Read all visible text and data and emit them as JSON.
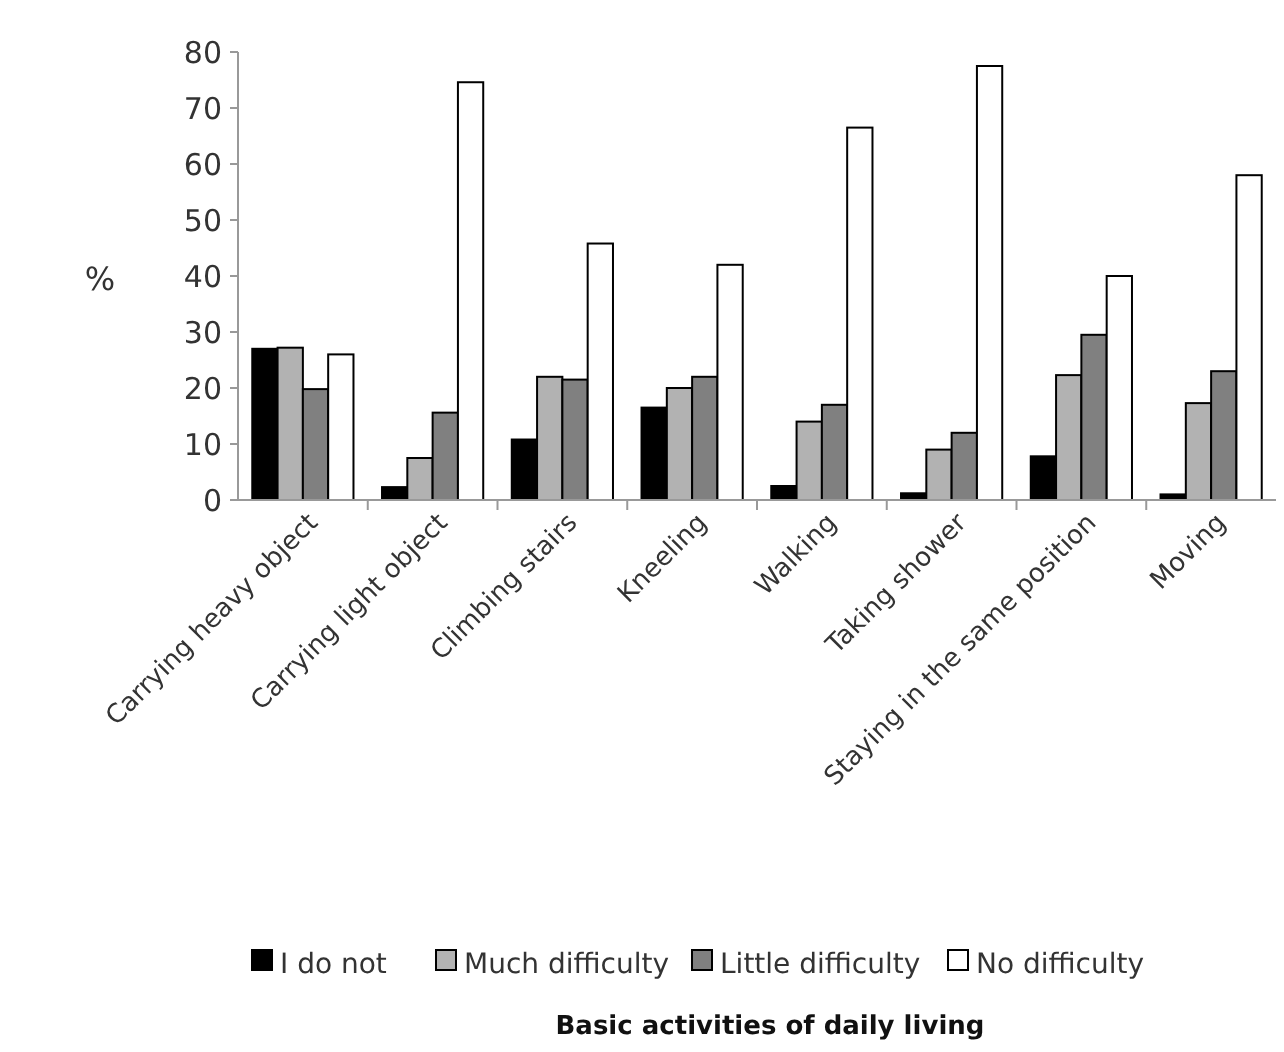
{
  "chart_data": {
    "type": "bar",
    "annotations": [
      "Basic activities of daily living"
    ],
    "ylabel": "%",
    "categories": [
      "Carrying heavy object",
      "Carrying light object",
      "Climbing stairs",
      "Kneeling",
      "Walking",
      "Taking shower",
      "Staying in the same position",
      "Moving"
    ],
    "series": [
      {
        "name": "I do not",
        "color": "#000000",
        "values": [
          27,
          2.3,
          10.8,
          16.5,
          2.5,
          1.2,
          7.8,
          1
        ]
      },
      {
        "name": "Much difficulty",
        "color": "#b2b2b2",
        "values": [
          27.2,
          7.5,
          22,
          20,
          14,
          9,
          22.3,
          17.3
        ]
      },
      {
        "name": "Little difficulty",
        "color": "#808080",
        "values": [
          19.8,
          15.6,
          21.5,
          22,
          17,
          12,
          29.5,
          23
        ]
      },
      {
        "name": "No difficulty",
        "color": "#ffffff",
        "values": [
          26,
          74.6,
          45.8,
          42,
          66.5,
          77.5,
          40,
          58
        ]
      }
    ],
    "ylim": [
      0,
      80
    ],
    "yticks": [
      0,
      10,
      20,
      30,
      40,
      50,
      60,
      70,
      80
    ],
    "grid": false,
    "legend": "bottom"
  }
}
